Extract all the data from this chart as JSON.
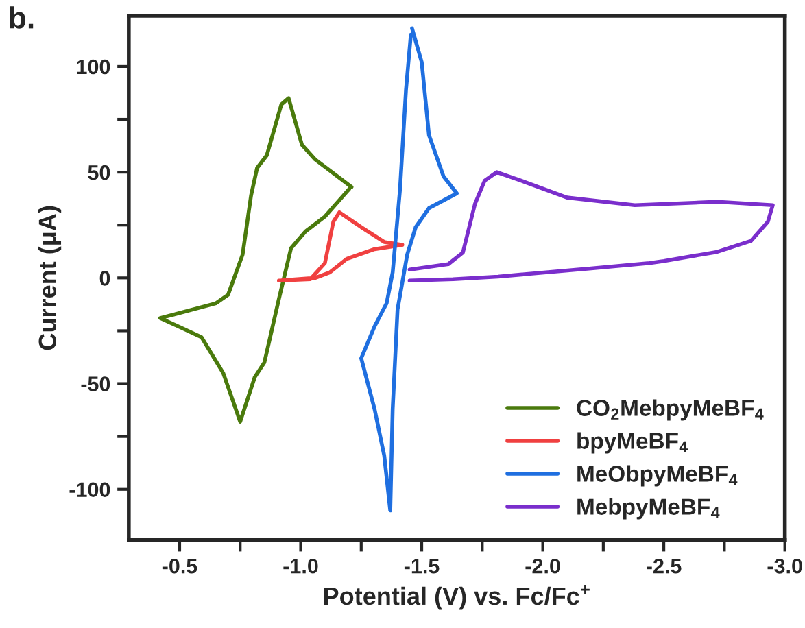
{
  "chart_data": {
    "type": "line",
    "xlabel": "Potential (V) vs. Fc/Fc$^{+}$",
    "ylabel": "Current (μA)",
    "annotations": [
      "b."
    ],
    "xlim": [
      -0.29,
      -3.0
    ],
    "xticks": [
      -0.5,
      {
        "value": -0.75,
        "label": null
      },
      {
        "value": -1.0,
        "label": "-1.0"
      },
      {
        "value": -1.25,
        "label": null
      },
      -1.5,
      {
        "value": -1.75,
        "label": null
      },
      {
        "value": -2.0,
        "label": "-2.0"
      },
      {
        "value": -2.25,
        "label": null
      },
      -2.5,
      {
        "value": -2.75,
        "label": null
      },
      {
        "value": -3.0,
        "label": "-3.0"
      }
    ],
    "ylim": [
      -124,
      124
    ],
    "yticks": [
      -100,
      {
        "value": -75,
        "label": null
      },
      -50,
      {
        "value": -25,
        "label": null
      },
      0,
      {
        "value": 25,
        "label": null
      },
      50,
      {
        "value": 75,
        "label": null
      },
      100
    ],
    "grid": false,
    "legend": "bottom right",
    "marker": "none",
    "line_style": "solid",
    "series": [
      {
        "name": "CO$_{2}$MebpyMeBF$_{4}$",
        "color": "#4a7a0c",
        "x": [
          -1.21,
          -1.06,
          -1.005,
          -0.95,
          -0.92,
          -0.86,
          -0.82,
          -0.795,
          -0.76,
          -0.7,
          -0.65,
          -0.42,
          -0.59,
          -0.68,
          -0.75,
          -0.81,
          -0.85,
          -0.91,
          -0.96,
          -1.02,
          -1.1,
          -1.2
        ],
        "values": [
          43,
          56,
          63,
          85,
          82,
          58,
          52,
          39,
          11,
          -8,
          -12,
          -19,
          -28,
          -45,
          -68,
          -47,
          -40,
          -10,
          14,
          22,
          29,
          42
        ]
      },
      {
        "name": "bpyMeBF$_{4}$",
        "color": "#f04040",
        "x": [
          -0.91,
          -1.04,
          -1.1,
          -1.135,
          -1.16,
          -1.25,
          -1.345,
          -1.42,
          -1.305,
          -1.19,
          -1.12,
          -1.06,
          -0.92
        ],
        "values": [
          -1.3,
          -0.6,
          7,
          26.6,
          31,
          24,
          17,
          15.6,
          13.6,
          9,
          2.6,
          0,
          -1.2
        ]
      },
      {
        "name": "MeObpyMeBF$_{4}$",
        "color": "#1f6fe0",
        "x": [
          -1.46,
          -1.5,
          -1.53,
          -1.59,
          -1.645,
          -1.53,
          -1.475,
          -1.44,
          -1.4,
          -1.38,
          -1.37,
          -1.345,
          -1.305,
          -1.25,
          -1.305,
          -1.355,
          -1.38,
          -1.41,
          -1.435,
          -1.455
        ],
        "values": [
          118,
          102,
          67.5,
          48,
          40,
          33,
          24,
          11,
          -15,
          -62,
          -110,
          -84,
          -62,
          -38,
          -23,
          -12,
          2.6,
          41.5,
          89,
          115
        ]
      },
      {
        "name": "MebpyMeBF$_{4}$",
        "color": "#7a2ecc",
        "x": [
          -1.45,
          -1.61,
          -1.67,
          -1.72,
          -1.76,
          -1.81,
          -1.91,
          -2.1,
          -2.38,
          -2.72,
          -2.95,
          -2.93,
          -2.86,
          -2.72,
          -2.5,
          -2.44,
          -2.2,
          -1.815,
          -1.63,
          -1.45
        ],
        "values": [
          3.9,
          6.5,
          12,
          35,
          46,
          50,
          46,
          38,
          34.4,
          36,
          34.4,
          26.6,
          17.5,
          12.3,
          8,
          7,
          4.5,
          0.6,
          -0.6,
          -1.3
        ]
      }
    ]
  }
}
